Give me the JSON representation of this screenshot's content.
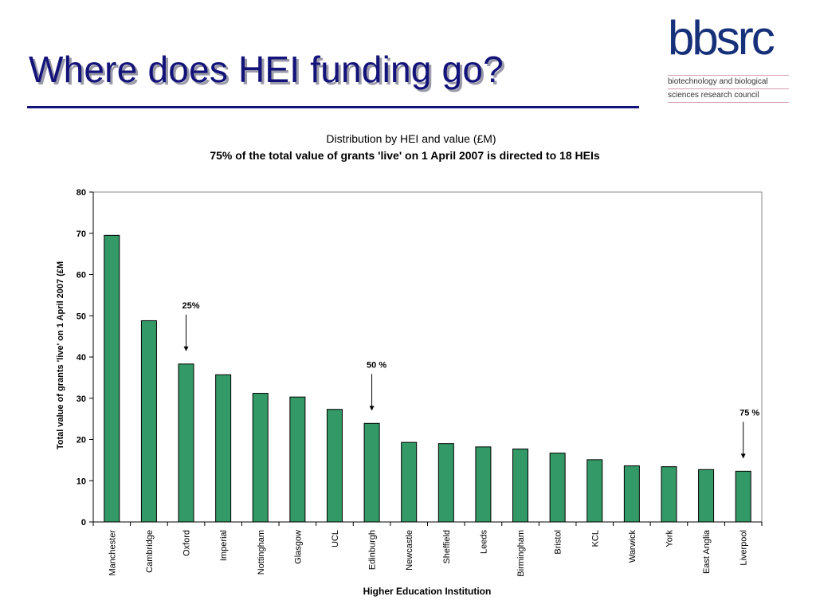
{
  "slide": {
    "title": "Where does HEI funding go?"
  },
  "logo": {
    "wordmark": "bbsrc",
    "line1": "biotechnology and biological",
    "line2": "sciences research council"
  },
  "colors": {
    "title": "#13137a",
    "bar": "#339966",
    "bar_outline": "#000000"
  },
  "chart_data": {
    "type": "bar",
    "title": "Distribution by HEI and value (£M)",
    "subtitle": "75% of the total value of grants 'live' on 1 April 2007 is directed to 18 HEIs",
    "xlabel": "Higher Education Institution",
    "ylabel": "Total value of grants 'live' on 1 April 2007 (£M",
    "ylim": [
      0,
      80
    ],
    "yticks": [
      0,
      10,
      20,
      30,
      40,
      50,
      60,
      70,
      80
    ],
    "grid": false,
    "categories": [
      "Manchester",
      "Cambridge",
      "Oxford",
      "Imperial",
      "Nottingham",
      "Glasgow",
      "UCL",
      "Edinburgh",
      "Newcastle",
      "Sheffield",
      "Leeds",
      "Birmingham",
      "Bristol",
      "KCL",
      "Warwick",
      "York",
      "East Anglia",
      "Liverpool"
    ],
    "values": [
      69.5,
      48.8,
      38.3,
      35.7,
      31.2,
      30.3,
      27.3,
      23.9,
      19.3,
      19.0,
      18.2,
      17.7,
      16.7,
      15.1,
      13.6,
      13.4,
      12.7,
      12.3
    ],
    "annotations": [
      {
        "text": "25%",
        "category": "Oxford"
      },
      {
        "text": "50 %",
        "category": "Edinburgh"
      },
      {
        "text": "75 %",
        "category": "Liverpool"
      }
    ]
  }
}
